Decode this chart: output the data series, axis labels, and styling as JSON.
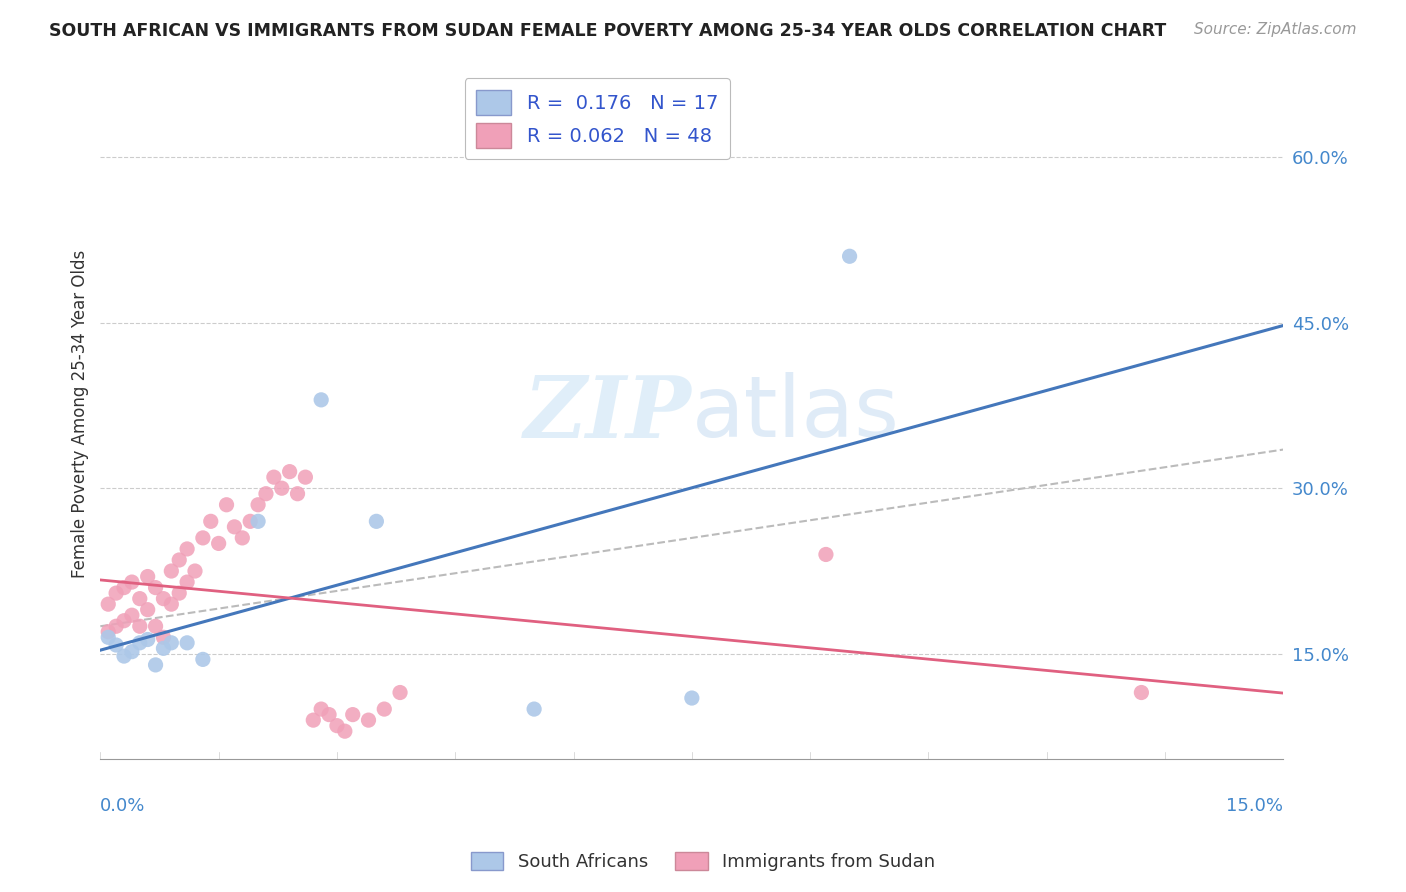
{
  "title": "SOUTH AFRICAN VS IMMIGRANTS FROM SUDAN FEMALE POVERTY AMONG 25-34 YEAR OLDS CORRELATION CHART",
  "source": "Source: ZipAtlas.com",
  "ylabel": "Female Poverty Among 25-34 Year Olds",
  "y_ticks": [
    0.15,
    0.3,
    0.45,
    0.6
  ],
  "y_tick_labels": [
    "15.0%",
    "30.0%",
    "45.0%",
    "60.0%"
  ],
  "x_range": [
    0.0,
    0.15
  ],
  "y_range": [
    0.055,
    0.68
  ],
  "legend_line1": "R =  0.176   N = 17",
  "legend_line2": "R = 0.062   N = 48",
  "color_blue": "#adc8e8",
  "color_pink": "#f0a0b8",
  "color_blue_line": "#4477bb",
  "color_pink_line": "#e06080",
  "color_grey_dash": "#bbbbbb",
  "watermark_color": "#cce4f5",
  "sa_x": [
    0.001,
    0.002,
    0.003,
    0.004,
    0.005,
    0.006,
    0.007,
    0.008,
    0.009,
    0.011,
    0.013,
    0.02,
    0.028,
    0.035,
    0.055,
    0.075,
    0.095
  ],
  "sa_y": [
    0.165,
    0.158,
    0.148,
    0.152,
    0.16,
    0.163,
    0.14,
    0.155,
    0.16,
    0.16,
    0.145,
    0.27,
    0.38,
    0.27,
    0.1,
    0.11,
    0.51
  ],
  "sud_x": [
    0.001,
    0.001,
    0.002,
    0.002,
    0.003,
    0.003,
    0.004,
    0.004,
    0.005,
    0.005,
    0.006,
    0.006,
    0.007,
    0.007,
    0.008,
    0.008,
    0.009,
    0.009,
    0.01,
    0.01,
    0.011,
    0.011,
    0.012,
    0.013,
    0.014,
    0.015,
    0.016,
    0.017,
    0.018,
    0.019,
    0.02,
    0.021,
    0.022,
    0.023,
    0.024,
    0.025,
    0.026,
    0.027,
    0.028,
    0.029,
    0.03,
    0.031,
    0.032,
    0.034,
    0.036,
    0.038,
    0.092,
    0.132
  ],
  "sud_y": [
    0.17,
    0.195,
    0.175,
    0.205,
    0.18,
    0.21,
    0.185,
    0.215,
    0.175,
    0.2,
    0.19,
    0.22,
    0.175,
    0.21,
    0.165,
    0.2,
    0.195,
    0.225,
    0.205,
    0.235,
    0.215,
    0.245,
    0.225,
    0.255,
    0.27,
    0.25,
    0.285,
    0.265,
    0.255,
    0.27,
    0.285,
    0.295,
    0.31,
    0.3,
    0.315,
    0.295,
    0.31,
    0.09,
    0.1,
    0.095,
    0.085,
    0.08,
    0.095,
    0.09,
    0.1,
    0.115,
    0.24,
    0.115
  ],
  "dashed_line_x": [
    0.0,
    0.15
  ],
  "dashed_line_y": [
    0.175,
    0.335
  ]
}
